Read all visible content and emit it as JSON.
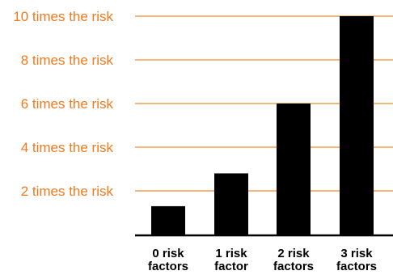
{
  "chart_data": {
    "type": "bar",
    "categories": [
      [
        "0 risk",
        "factors"
      ],
      [
        "1 risk",
        "factor"
      ],
      [
        "2 risk",
        "factors"
      ],
      [
        "3 risk",
        "factors"
      ]
    ],
    "values": [
      1.3,
      2.8,
      6,
      10
    ],
    "ylim": [
      0,
      10
    ],
    "yticks": [
      {
        "value": 2,
        "label": "2 times the risk"
      },
      {
        "value": 4,
        "label": "4 times the risk"
      },
      {
        "value": 6,
        "label": "6 times the risk"
      },
      {
        "value": 8,
        "label": "8 times the risk"
      },
      {
        "value": 10,
        "label": "10 times the risk"
      }
    ],
    "grid": true,
    "colors": {
      "bar": "#000000",
      "grid": "#f08a32",
      "tick_label": "#f07a1e",
      "axis": "#000000",
      "category_label": "#000000"
    }
  }
}
